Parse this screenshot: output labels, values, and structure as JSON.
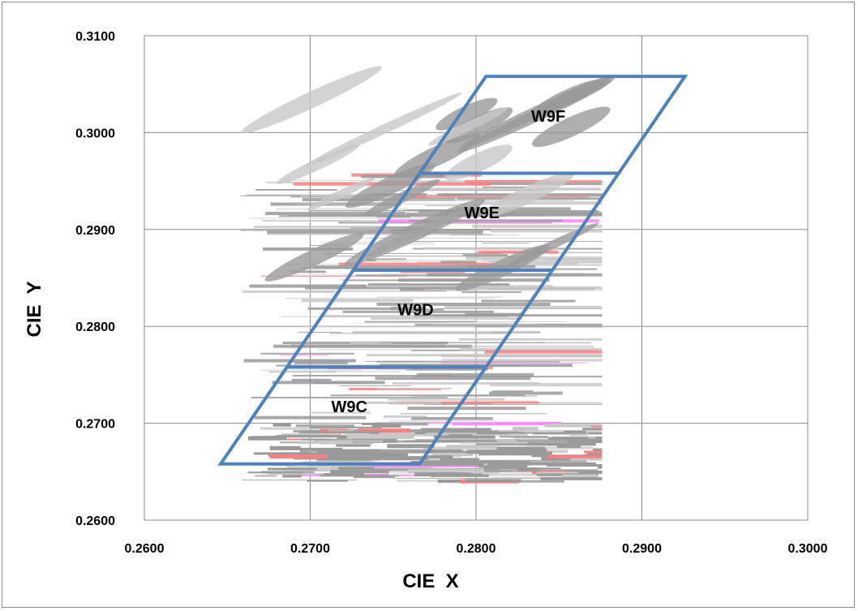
{
  "chart_data": {
    "type": "scatter",
    "title": "",
    "xlabel": "CIE  X",
    "ylabel": "CIE  Y",
    "xlim": [
      0.26,
      0.3
    ],
    "ylim": [
      0.26,
      0.31
    ],
    "xticks": [
      "0.2600",
      "0.2700",
      "0.2800",
      "0.2900",
      "0.3000"
    ],
    "yticks": [
      "0.2600",
      "0.2700",
      "0.2800",
      "0.2900",
      "0.3000",
      "0.3100"
    ],
    "grid": true,
    "legend": "none",
    "bin_outline_color": "#4f81bd",
    "bins": [
      {
        "name": "W9C",
        "corners": [
          [
            0.2646,
            0.2658
          ],
          [
            0.2766,
            0.2658
          ],
          [
            0.2806,
            0.2758
          ],
          [
            0.2686,
            0.2758
          ]
        ]
      },
      {
        "name": "W9D",
        "corners": [
          [
            0.2686,
            0.2758
          ],
          [
            0.2806,
            0.2758
          ],
          [
            0.2846,
            0.2858
          ],
          [
            0.2726,
            0.2858
          ]
        ]
      },
      {
        "name": "W9E",
        "corners": [
          [
            0.2726,
            0.2858
          ],
          [
            0.2846,
            0.2858
          ],
          [
            0.2886,
            0.2958
          ],
          [
            0.2766,
            0.2958
          ]
        ]
      },
      {
        "name": "W9F",
        "corners": [
          [
            0.2766,
            0.2958
          ],
          [
            0.2886,
            0.2958
          ],
          [
            0.2926,
            0.3058
          ],
          [
            0.2806,
            0.3058
          ]
        ]
      }
    ],
    "measured_region": {
      "x_range": [
        0.2658,
        0.2876
      ],
      "y_range": [
        0.264,
        0.3
      ],
      "colors": [
        "#9a9a9a",
        "#c8c8c8",
        "#ff8080",
        "#ff80ff",
        "#e6e6e6"
      ]
    }
  }
}
